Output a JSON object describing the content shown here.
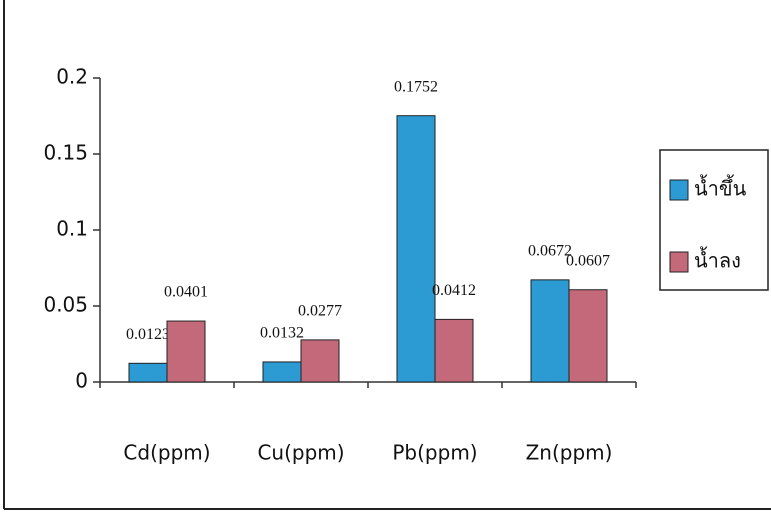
{
  "chart_data": {
    "type": "bar",
    "categories": [
      "Cd(ppm)",
      "Cu(ppm)",
      "Pb(ppm)",
      "Zn(ppm)"
    ],
    "series": [
      {
        "name": "น้ำขึ้น",
        "color": "#2c9ad3",
        "values": [
          0.0123,
          0.0132,
          0.1752,
          0.0672
        ]
      },
      {
        "name": "น้ำลง",
        "color": "#c4697a",
        "values": [
          0.0401,
          0.0277,
          0.0412,
          0.0607
        ]
      }
    ],
    "ylim": [
      0,
      0.2
    ],
    "yticks": [
      0,
      0.05,
      0.1,
      0.15,
      0.2
    ],
    "grid": false,
    "legend": "right"
  }
}
